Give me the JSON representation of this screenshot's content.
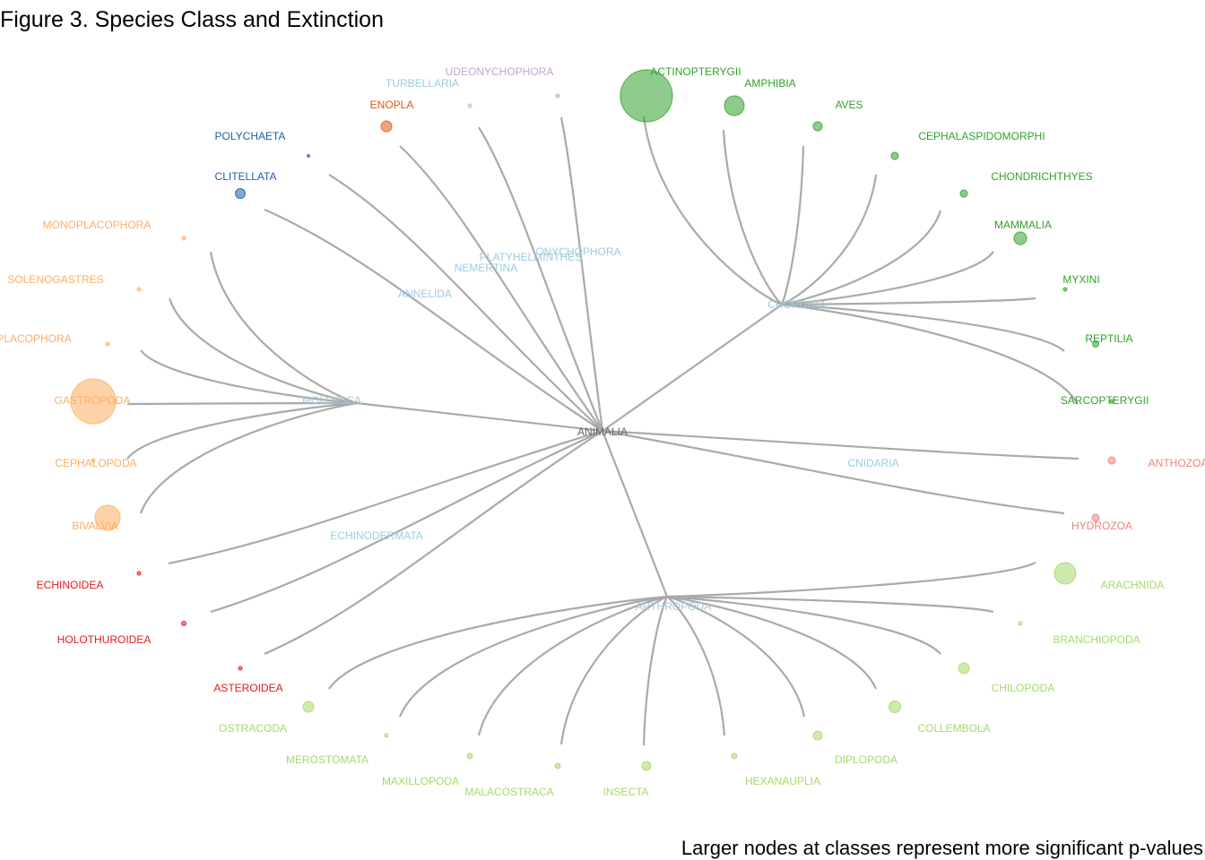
{
  "title": "Figure 3. Species Class and Extinction",
  "caption": "Larger nodes at classes represent more significant p-values",
  "colors": {
    "edge": "#aaaaaa",
    "root_label": "#666666",
    "phylum_label": "#9ecae1",
    "chordata": "#33a02c",
    "mollusca": "#fdae61",
    "echinodermata": "#e31a1c",
    "annelida": "#1f5fa8",
    "nemertina": "#e6550d",
    "platyhelminthes": "#9ecae1",
    "onychophora": "#c2a5cf",
    "cnidaria": "#f08080",
    "arthropoda": "#a6d96a"
  },
  "root": "ANIMALIA",
  "phyla": [
    {
      "name": "CHORDATA",
      "color": "chordata",
      "classes": [
        {
          "name": "ACTINOPTERYGII",
          "size": 29
        },
        {
          "name": "AMPHIBIA",
          "size": 11
        },
        {
          "name": "AVES",
          "size": 5
        },
        {
          "name": "CEPHALASPIDOMORPHI",
          "size": 4
        },
        {
          "name": "CHONDRICHTHYES",
          "size": 4
        },
        {
          "name": "MAMMALIA",
          "size": 7
        },
        {
          "name": "MYXINI",
          "size": 2
        },
        {
          "name": "REPTILIA",
          "size": 3.5
        },
        {
          "name": "SARCOPTERYGII",
          "size": 2
        }
      ]
    },
    {
      "name": "CNIDARIA",
      "color": "cnidaria",
      "classes": [
        {
          "name": "ANTHOZOA",
          "size": 4
        },
        {
          "name": "HYDROZOA",
          "size": 4
        }
      ]
    },
    {
      "name": "ARTHROPODA",
      "color": "arthropoda",
      "classes": [
        {
          "name": "ARACHNIDA",
          "size": 12
        },
        {
          "name": "BRANCHIOPODA",
          "size": 2
        },
        {
          "name": "CHILOPODA",
          "size": 6
        },
        {
          "name": "COLLEMBOLA",
          "size": 6.5
        },
        {
          "name": "DIPLOPODA",
          "size": 5
        },
        {
          "name": "HEXANAUPLIA",
          "size": 3
        },
        {
          "name": "INSECTA",
          "size": 5
        },
        {
          "name": "MALACOSTRACA",
          "size": 3
        },
        {
          "name": "MAXILLOPODA",
          "size": 3
        },
        {
          "name": "MEROSTOMATA",
          "size": 2
        },
        {
          "name": "OSTRACODA",
          "size": 6
        }
      ]
    },
    {
      "name": "ECHINODERMATA",
      "color": "echinodermata",
      "classes": [
        {
          "name": "ASTEROIDEA",
          "size": 2
        },
        {
          "name": "HOLOTHUROIDEA",
          "size": 2.5
        },
        {
          "name": "ECHINOIDEA",
          "size": 2
        }
      ]
    },
    {
      "name": "MOLLUSCA",
      "color": "mollusca",
      "classes": [
        {
          "name": "BIVALVIA",
          "size": 14
        },
        {
          "name": "CEPHALOPODA",
          "size": 2
        },
        {
          "name": "GASTROPODA",
          "size": 25
        },
        {
          "name": "PLACOPHORA",
          "size": 2
        },
        {
          "name": "SOLENOGASTRES",
          "size": 2
        },
        {
          "name": "MONOPLACOPHORA",
          "size": 2
        }
      ]
    },
    {
      "name": "ANNELIDA",
      "color": "annelida",
      "classes": [
        {
          "name": "CLITELLATA",
          "size": 5.5
        },
        {
          "name": "POLYCHAETA",
          "size": 1.5
        }
      ]
    },
    {
      "name": "NEMERTINA",
      "color": "nemertina",
      "classes": [
        {
          "name": "ENOPLA",
          "size": 6
        }
      ]
    },
    {
      "name": "PLATYHELMINTHES",
      "color": "platyhelminthes",
      "classes": [
        {
          "name": "TURBELLARIA",
          "size": 2
        }
      ]
    },
    {
      "name": "ONYCHOPHORA",
      "color": "onychophora",
      "classes": [
        {
          "name": "UDEONYCHOPHORA",
          "size": 2
        }
      ]
    }
  ]
}
